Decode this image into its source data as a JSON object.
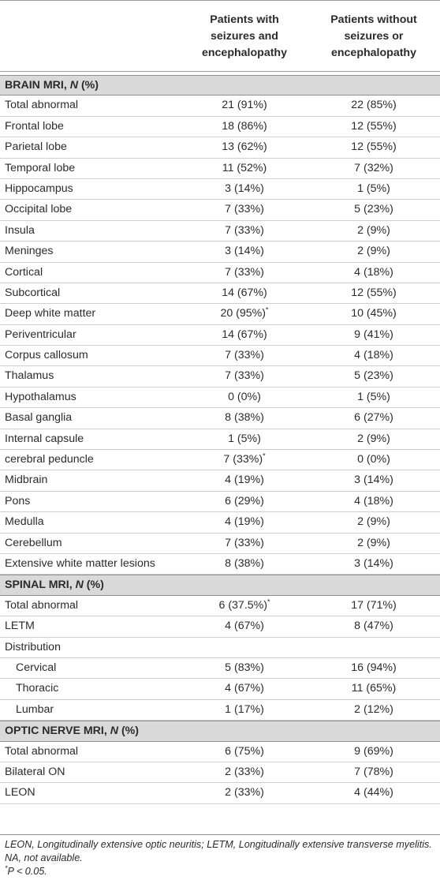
{
  "columns": {
    "col1": "Patients with\nseizures and\nencephalopathy",
    "col2": "Patients without\nseizures or\nencephalopathy"
  },
  "sections": [
    {
      "title_prefix": "BRAIN MRI, ",
      "title_n": "N",
      "title_suffix": " (%)",
      "rows": [
        {
          "label": "Total abnormal",
          "v1": "21 (91%)",
          "v1_sup": "",
          "v2": "22 (85%)"
        },
        {
          "label": "Frontal lobe",
          "v1": "18 (86%)",
          "v1_sup": "",
          "v2": "12 (55%)"
        },
        {
          "label": "Parietal lobe",
          "v1": "13 (62%)",
          "v1_sup": "",
          "v2": "12 (55%)"
        },
        {
          "label": "Temporal lobe",
          "v1": "11 (52%)",
          "v1_sup": "",
          "v2": "7 (32%)"
        },
        {
          "label": "Hippocampus",
          "v1": "3 (14%)",
          "v1_sup": "",
          "v2": "1 (5%)"
        },
        {
          "label": "Occipital lobe",
          "v1": "7 (33%)",
          "v1_sup": "",
          "v2": "5 (23%)"
        },
        {
          "label": "Insula",
          "v1": "7 (33%)",
          "v1_sup": "",
          "v2": "2 (9%)"
        },
        {
          "label": "Meninges",
          "v1": "3 (14%)",
          "v1_sup": "",
          "v2": "2 (9%)"
        },
        {
          "label": "Cortical",
          "v1": "7 (33%)",
          "v1_sup": "",
          "v2": "4 (18%)"
        },
        {
          "label": "Subcortical",
          "v1": "14 (67%)",
          "v1_sup": "",
          "v2": "12 (55%)"
        },
        {
          "label": "Deep white matter",
          "v1": "20 (95%)",
          "v1_sup": "*",
          "v2": "10 (45%)"
        },
        {
          "label": "Periventricular",
          "v1": "14 (67%)",
          "v1_sup": "",
          "v2": "9 (41%)"
        },
        {
          "label": "Corpus callosum",
          "v1": "7 (33%)",
          "v1_sup": "",
          "v2": "4 (18%)"
        },
        {
          "label": "Thalamus",
          "v1": "7 (33%)",
          "v1_sup": "",
          "v2": "5 (23%)"
        },
        {
          "label": "Hypothalamus",
          "v1": "0 (0%)",
          "v1_sup": "",
          "v2": "1 (5%)"
        },
        {
          "label": "Basal ganglia",
          "v1": "8 (38%)",
          "v1_sup": "",
          "v2": "6 (27%)"
        },
        {
          "label": "Internal capsule",
          "v1": "1 (5%)",
          "v1_sup": "",
          "v2": "2 (9%)"
        },
        {
          "label": "cerebral peduncle",
          "v1": "7 (33%)",
          "v1_sup": "*",
          "v2": "0 (0%)"
        },
        {
          "label": "Midbrain",
          "v1": "4 (19%)",
          "v1_sup": "",
          "v2": "3 (14%)"
        },
        {
          "label": "Pons",
          "v1": "6 (29%)",
          "v1_sup": "",
          "v2": "4 (18%)"
        },
        {
          "label": "Medulla",
          "v1": "4 (19%)",
          "v1_sup": "",
          "v2": "2 (9%)"
        },
        {
          "label": "Cerebellum",
          "v1": "7 (33%)",
          "v1_sup": "",
          "v2": "2 (9%)"
        },
        {
          "label": "Extensive white matter lesions",
          "v1": "8 (38%)",
          "v1_sup": "",
          "v2": "3 (14%)"
        }
      ]
    },
    {
      "title_prefix": "SPINAL MRI, ",
      "title_n": "N",
      "title_suffix": " (%)",
      "rows": [
        {
          "label": "Total abnormal",
          "v1": "6 (37.5%)",
          "v1_sup": "*",
          "v2": "17 (71%)"
        },
        {
          "label": "LETM",
          "v1": "4 (67%)",
          "v1_sup": "",
          "v2": "8 (47%)"
        },
        {
          "label": "Distribution",
          "v1": "",
          "v1_sup": "",
          "v2": ""
        },
        {
          "label": "Cervical",
          "v1": "5 (83%)",
          "v1_sup": "",
          "v2": "16 (94%)",
          "indent": true
        },
        {
          "label": "Thoracic",
          "v1": "4 (67%)",
          "v1_sup": "",
          "v2": "11 (65%)",
          "indent": true
        },
        {
          "label": "Lumbar",
          "v1": "1 (17%)",
          "v1_sup": "",
          "v2": "2 (12%)",
          "indent": true
        }
      ]
    },
    {
      "title_prefix": "OPTIC NERVE MRI, ",
      "title_n": "N",
      "title_suffix": " (%)",
      "rows": [
        {
          "label": "Total abnormal",
          "v1": "6 (75%)",
          "v1_sup": "",
          "v2": "9 (69%)"
        },
        {
          "label": "Bilateral ON",
          "v1": "2 (33%)",
          "v1_sup": "",
          "v2": "7 (78%)"
        },
        {
          "label": "LEON",
          "v1": "2 (33%)",
          "v1_sup": "",
          "v2": "4 (44%)"
        }
      ]
    }
  ],
  "footnotes": {
    "abbreviations": "LEON, Longitudinally extensive optic neuritis; LETM, Longitudinally extensive transverse myelitis.",
    "na": "NA, not available.",
    "sig_mark": "*",
    "sig": "P < 0.05."
  }
}
